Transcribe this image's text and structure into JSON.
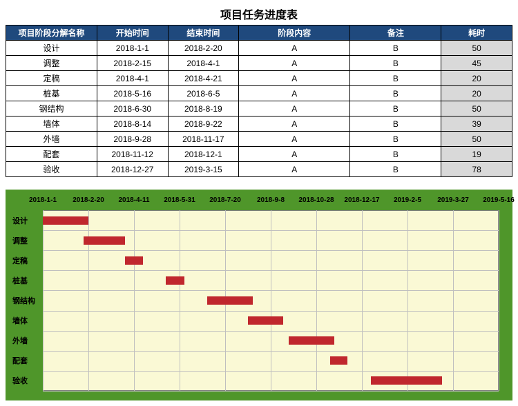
{
  "title": "项目任务进度表",
  "table": {
    "header_bg": "#1f497d",
    "header_color": "#ffffff",
    "columns": [
      {
        "key": "name",
        "label": "项目阶段分解名称",
        "width": "18%"
      },
      {
        "key": "start",
        "label": "开始时间",
        "width": "14%"
      },
      {
        "key": "end",
        "label": "结束时间",
        "width": "14%"
      },
      {
        "key": "content",
        "label": "阶段内容",
        "width": "22%"
      },
      {
        "key": "note",
        "label": "备注",
        "width": "18%"
      },
      {
        "key": "dur",
        "label": "耗时",
        "width": "14%",
        "shaded": true
      }
    ],
    "rows": [
      {
        "name": "设计",
        "start": "2018-1-1",
        "end": "2018-2-20",
        "content": "A",
        "note": "B",
        "dur": "50"
      },
      {
        "name": "调整",
        "start": "2018-2-15",
        "end": "2018-4-1",
        "content": "A",
        "note": "B",
        "dur": "45"
      },
      {
        "name": "定稿",
        "start": "2018-4-1",
        "end": "2018-4-21",
        "content": "A",
        "note": "B",
        "dur": "20"
      },
      {
        "name": "桩基",
        "start": "2018-5-16",
        "end": "2018-6-5",
        "content": "A",
        "note": "B",
        "dur": "20"
      },
      {
        "name": "钢结构",
        "start": "2018-6-30",
        "end": "2018-8-19",
        "content": "A",
        "note": "B",
        "dur": "50"
      },
      {
        "name": "墙体",
        "start": "2018-8-14",
        "end": "2018-9-22",
        "content": "A",
        "note": "B",
        "dur": "39"
      },
      {
        "name": "外墙",
        "start": "2018-9-28",
        "end": "2018-11-17",
        "content": "A",
        "note": "B",
        "dur": "50"
      },
      {
        "name": "配套",
        "start": "2018-11-12",
        "end": "2018-12-1",
        "content": "A",
        "note": "B",
        "dur": "19"
      },
      {
        "name": "验收",
        "start": "2018-12-27",
        "end": "2019-3-15",
        "content": "A",
        "note": "B",
        "dur": "78"
      }
    ]
  },
  "gantt": {
    "background_outer": "#4f962a",
    "background_inner": "#faf9d5",
    "grid_color": "#bfbfbf",
    "bar_color": "#c0272d",
    "min_day": 0,
    "max_day": 500,
    "tick_step": 50,
    "xticks": [
      {
        "day": 0,
        "label": "2018-1-1"
      },
      {
        "day": 50,
        "label": "2018-2-20"
      },
      {
        "day": 100,
        "label": "2018-4-11"
      },
      {
        "day": 150,
        "label": "2018-5-31"
      },
      {
        "day": 200,
        "label": "2018-7-20"
      },
      {
        "day": 250,
        "label": "2018-9-8"
      },
      {
        "day": 300,
        "label": "2018-10-28"
      },
      {
        "day": 350,
        "label": "2018-12-17"
      },
      {
        "day": 400,
        "label": "2019-2-5"
      },
      {
        "day": 450,
        "label": "2019-3-27"
      },
      {
        "day": 500,
        "label": "2019-5-16"
      }
    ],
    "tasks": [
      {
        "label": "设计",
        "start_day": 0,
        "duration": 50
      },
      {
        "label": "调整",
        "start_day": 45,
        "duration": 45
      },
      {
        "label": "定稿",
        "start_day": 90,
        "duration": 20
      },
      {
        "label": "桩基",
        "start_day": 135,
        "duration": 20
      },
      {
        "label": "钢结构",
        "start_day": 180,
        "duration": 50
      },
      {
        "label": "墙体",
        "start_day": 225,
        "duration": 39
      },
      {
        "label": "外墙",
        "start_day": 270,
        "duration": 50
      },
      {
        "label": "配套",
        "start_day": 315,
        "duration": 19
      },
      {
        "label": "验收",
        "start_day": 360,
        "duration": 78
      }
    ]
  }
}
